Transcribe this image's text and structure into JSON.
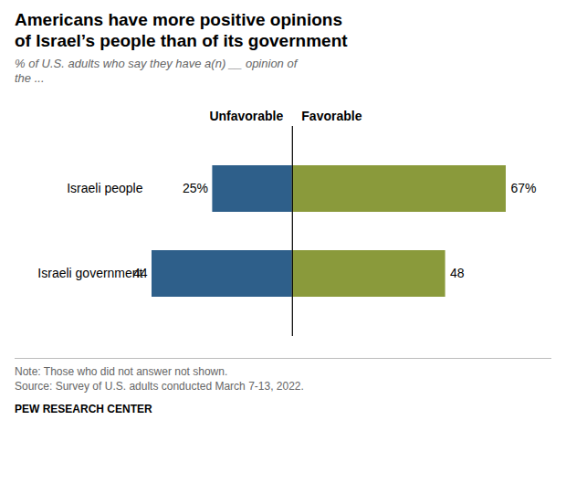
{
  "chart_data": {
    "type": "bar",
    "orientation": "horizontal",
    "title": "Americans have more positive opinions\nof Israel’s people than of its government",
    "subtitle": "% of U.S. adults who say they have a(n) __ opinion of\nthe ...",
    "categories": [
      "Israeli people",
      "Israeli government"
    ],
    "series": [
      {
        "name": "Unfavorable",
        "color": "#2E5F8A",
        "values": [
          25,
          44
        ],
        "value_labels": [
          "25%",
          "44"
        ]
      },
      {
        "name": "Favorable",
        "color": "#8A9A3B",
        "values": [
          67,
          48
        ],
        "value_labels": [
          "67%",
          "48"
        ]
      }
    ],
    "data_labels": true,
    "tick_labels": "y",
    "note": "Note: Those who did not answer not shown.",
    "source": "Source: Survey of U.S. adults conducted March 7-13, 2022.",
    "footer": "PEW RESEARCH CENTER"
  }
}
